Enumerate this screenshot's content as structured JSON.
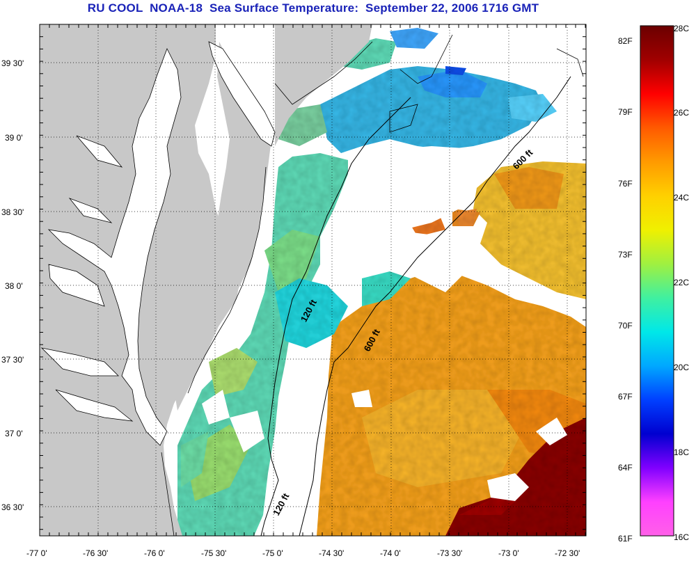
{
  "title": "RU COOL  NOAA-18  Sea Surface Temperature:  September 22, 2006 1716 GMT",
  "map": {
    "lat_labels": [
      "39 30'",
      "39 0'",
      "38 30'",
      "38 0'",
      "37 30'",
      "37 0'",
      "36 30'"
    ],
    "lon_labels": [
      "-77 0'",
      "-76 30'",
      "-76 0'",
      "-75 30'",
      "-75 0'",
      "-74 30'",
      "-74 0'",
      "-73 30'",
      "-73 0'",
      "-72 30'"
    ],
    "contours": {
      "c120_upper": "120 ft",
      "c120_lower": "120 ft",
      "c600_upper": "600 ft",
      "c600_lower": "600 ft"
    },
    "colors": {
      "land": "#c8c8c8",
      "cloud": "#ffffff",
      "frame": "#000000"
    }
  },
  "colorbar": {
    "f_labels": [
      "82F",
      "79F",
      "76F",
      "73F",
      "70F",
      "67F",
      "64F",
      "61F"
    ],
    "c_labels": [
      "28C",
      "26C",
      "24C",
      "22C",
      "20C",
      "18C",
      "16C"
    ],
    "gradient_stops": [
      "#6b0000",
      "#a00000",
      "#ff0000",
      "#ff5a00",
      "#ff9a00",
      "#ffd000",
      "#f0f000",
      "#a0f040",
      "#40f0a0",
      "#00e8e8",
      "#00a8ff",
      "#0040ff",
      "#0000d0",
      "#8000ff",
      "#ff40ff",
      "#ff60e8"
    ]
  }
}
